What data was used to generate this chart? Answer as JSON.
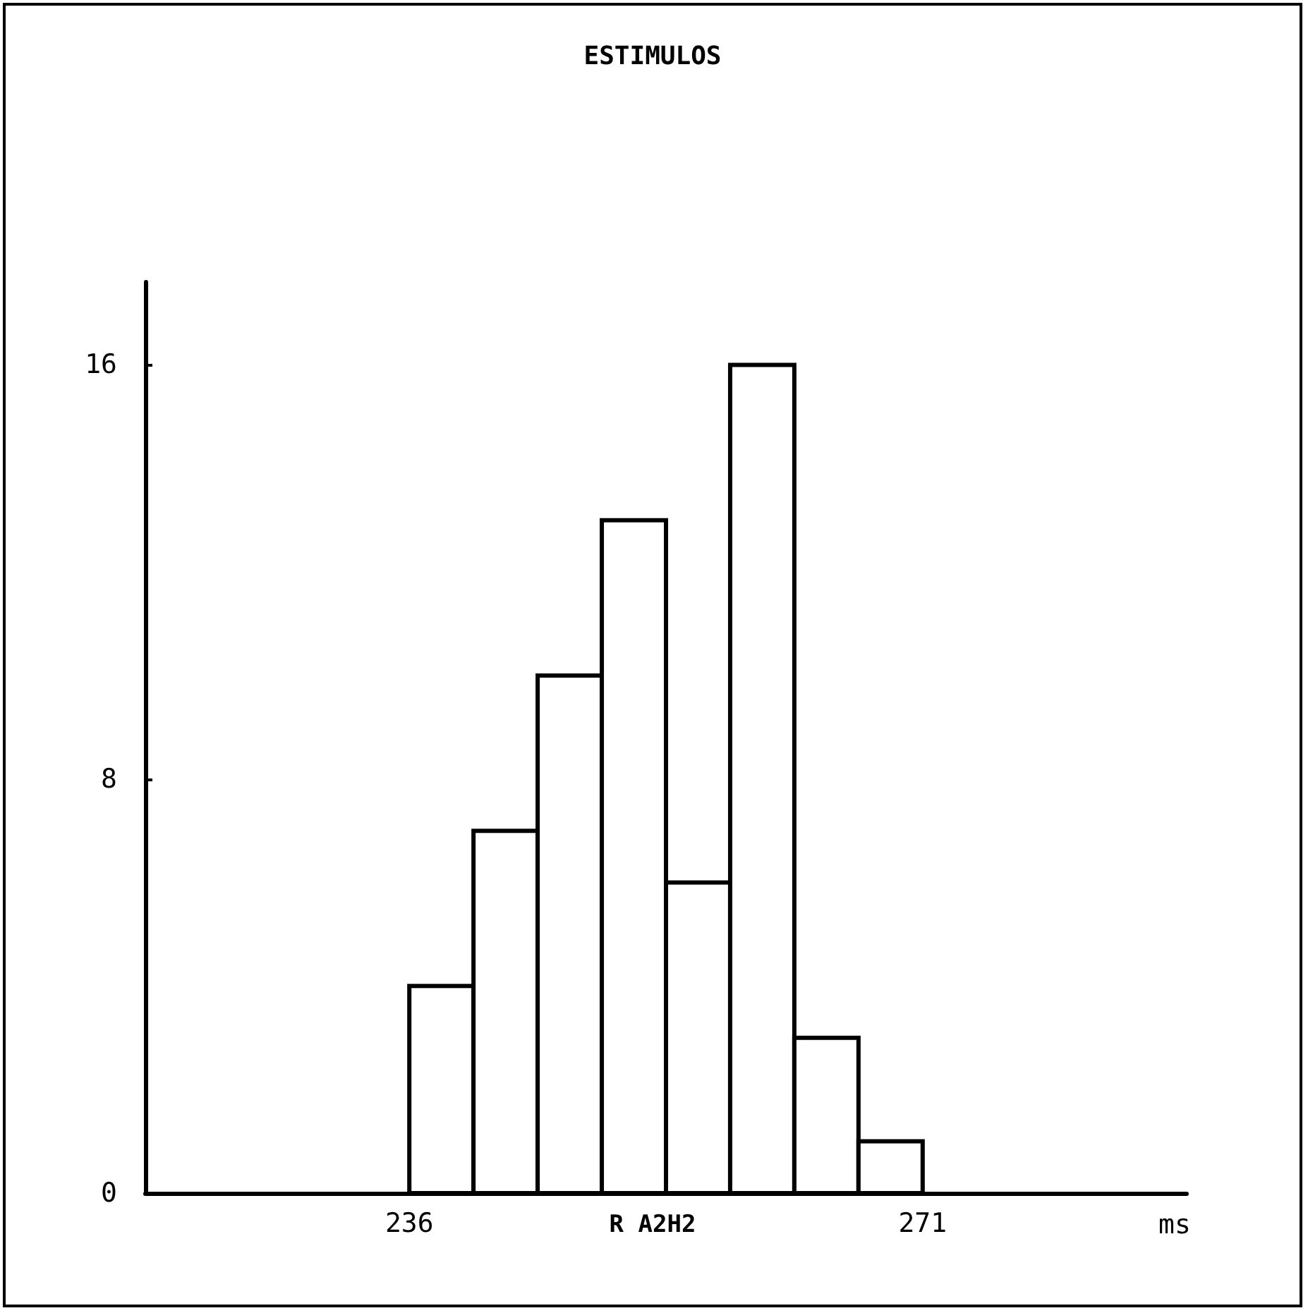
{
  "chart_data": {
    "type": "histogram",
    "title": "ESTIMULOS",
    "xlabel": "ms",
    "annotations": [
      "R A2H2"
    ],
    "bins": [
      236,
      240.375,
      244.75,
      249.125,
      253.5,
      257.875,
      262.25,
      266.625,
      271
    ],
    "values": [
      4,
      7,
      10,
      13,
      6,
      16,
      3,
      1
    ],
    "color": "#ffffff",
    "xlim": [
      218,
      289
    ],
    "xticks": [
      236,
      271
    ],
    "ylim": [
      0,
      17.6
    ],
    "yticks": [
      0,
      8,
      16
    ],
    "grid": false
  }
}
